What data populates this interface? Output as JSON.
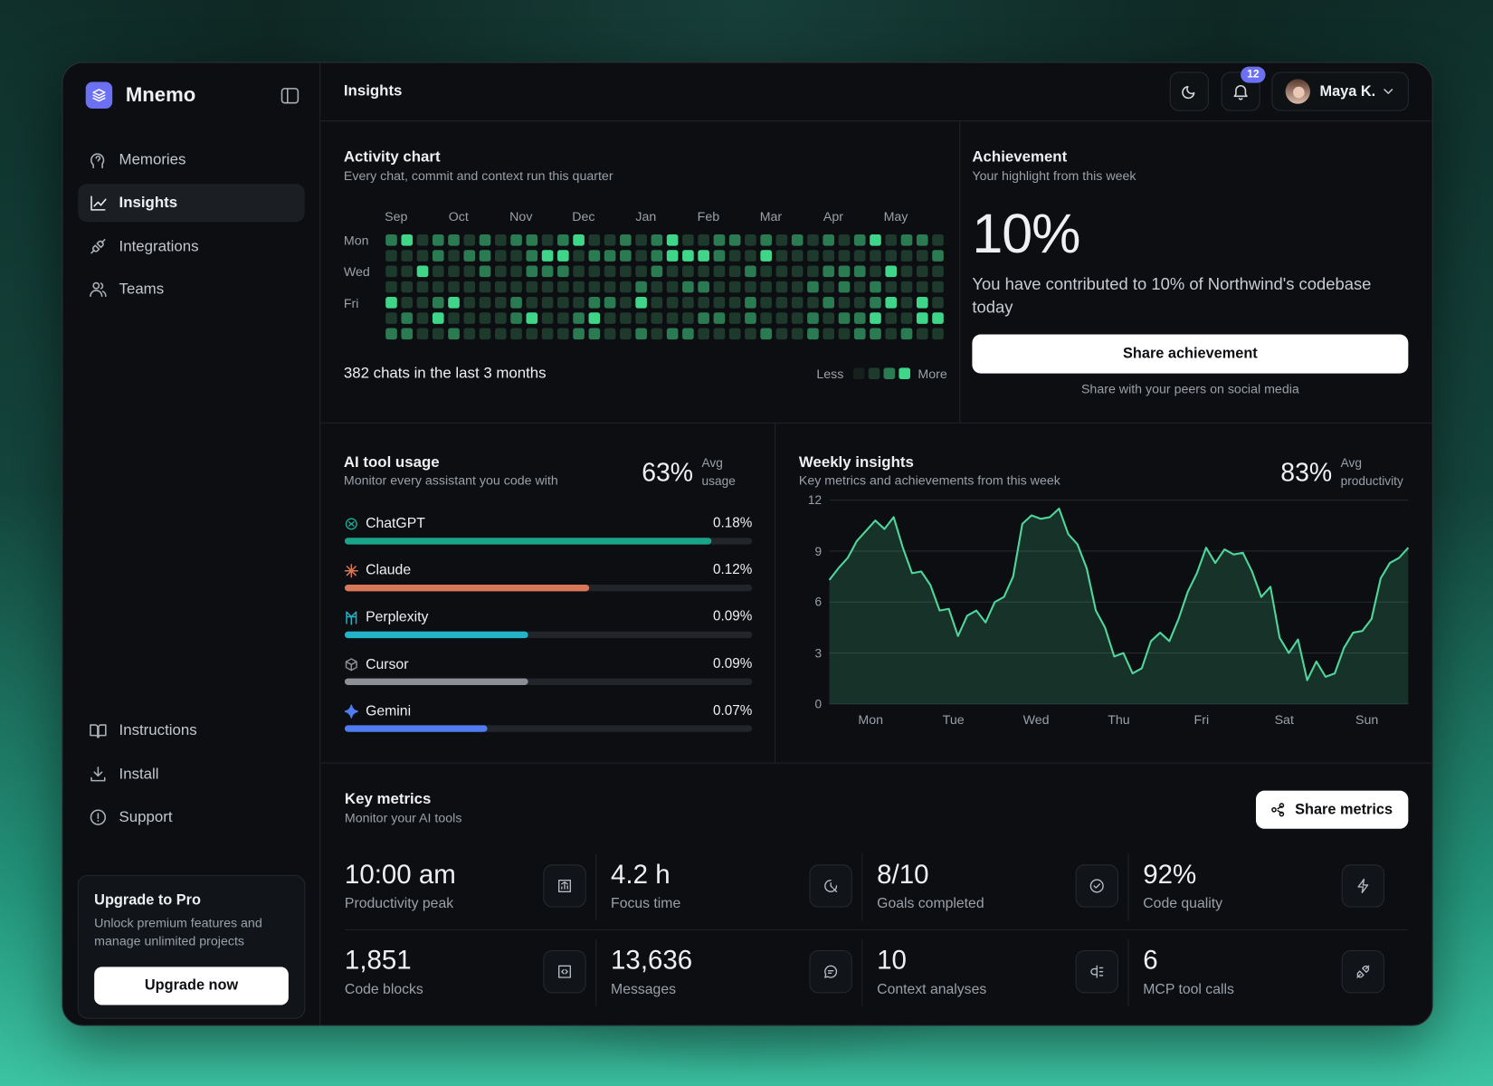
{
  "sidebar": {
    "brand": "Mnemo",
    "nav": [
      "Memories",
      "Insights",
      "Integrations",
      "Teams"
    ],
    "footer_nav": [
      "Instructions",
      "Install",
      "Support"
    ],
    "upgrade": {
      "title": "Upgrade to Pro",
      "text": "Unlock premium features and manage unlimited projects",
      "button": "Upgrade now"
    }
  },
  "header": {
    "title": "Insights",
    "notifications": 12,
    "user": "Maya K."
  },
  "activity": {
    "title": "Activity chart",
    "subtitle": "Every chat, commit and context run this quarter",
    "months": [
      "Sep",
      "Oct",
      "Nov",
      "Dec",
      "Jan",
      "Feb",
      "Mar",
      "Apr",
      "May"
    ],
    "days": [
      "Mon",
      "Wed",
      "Fri"
    ],
    "grid": [
      [
        2,
        3,
        1,
        2,
        2,
        1,
        2,
        1,
        2,
        2,
        1,
        2,
        3,
        1,
        1,
        2,
        1,
        2,
        3,
        1,
        1,
        2,
        2,
        1,
        2,
        1,
        2,
        1,
        2,
        1,
        2,
        3,
        1,
        2,
        2,
        1
      ],
      [
        1,
        1,
        1,
        2,
        1,
        2,
        2,
        1,
        1,
        2,
        3,
        3,
        1,
        2,
        2,
        2,
        1,
        2,
        3,
        3,
        3,
        2,
        1,
        1,
        3,
        1,
        1,
        1,
        1,
        1,
        1,
        1,
        1,
        1,
        1,
        2
      ],
      [
        1,
        1,
        3,
        1,
        1,
        1,
        2,
        1,
        1,
        2,
        2,
        2,
        1,
        1,
        1,
        1,
        1,
        2,
        1,
        1,
        1,
        1,
        1,
        2,
        1,
        1,
        1,
        1,
        2,
        2,
        2,
        1,
        3,
        1,
        1,
        1
      ],
      [
        1,
        1,
        1,
        1,
        1,
        1,
        1,
        1,
        1,
        1,
        1,
        1,
        1,
        1,
        1,
        1,
        2,
        1,
        1,
        2,
        2,
        1,
        1,
        1,
        1,
        1,
        1,
        2,
        1,
        2,
        1,
        2,
        1,
        1,
        1,
        1
      ],
      [
        3,
        1,
        1,
        2,
        3,
        1,
        1,
        1,
        2,
        1,
        1,
        1,
        1,
        2,
        2,
        1,
        3,
        1,
        1,
        1,
        1,
        1,
        1,
        2,
        1,
        1,
        1,
        1,
        2,
        1,
        1,
        2,
        3,
        1,
        3,
        1
      ],
      [
        1,
        2,
        1,
        3,
        1,
        1,
        1,
        1,
        2,
        3,
        1,
        1,
        2,
        3,
        1,
        1,
        1,
        1,
        1,
        1,
        2,
        2,
        1,
        2,
        1,
        1,
        1,
        2,
        1,
        2,
        2,
        3,
        1,
        1,
        3,
        3
      ],
      [
        2,
        2,
        1,
        1,
        2,
        1,
        1,
        1,
        1,
        1,
        1,
        1,
        2,
        2,
        1,
        1,
        2,
        1,
        2,
        2,
        1,
        1,
        1,
        1,
        2,
        1,
        1,
        2,
        1,
        1,
        2,
        2,
        1,
        2,
        1,
        1
      ]
    ],
    "colors": [
      "#17201d",
      "#1d3a2d",
      "#2a7a52",
      "#3fd68a"
    ],
    "summary": "382 chats in the last 3 months",
    "legend": [
      "Less",
      "More"
    ]
  },
  "achievement": {
    "title": "Achievement",
    "subtitle": "Your highlight from this week",
    "value": "10%",
    "text": "You have contributed to 10% of Northwind's codebase today",
    "button": "Share achievement",
    "caption": "Share with your peers on social media"
  },
  "ai_usage": {
    "title": "AI tool usage",
    "subtitle": "Monitor every assistant you code with",
    "avg": "63%",
    "avg_caption": [
      "Avg",
      "usage"
    ],
    "names": [
      "ChatGPT",
      "Claude",
      "Perplexity",
      "Cursor",
      "Gemini"
    ],
    "values": [
      0.18,
      0.12,
      0.09,
      0.09,
      0.07
    ],
    "value_labels": [
      "0.18%",
      "0.12%",
      "0.09%",
      "0.09%",
      "0.07%"
    ],
    "colors": [
      "#1aa58a",
      "#d9775a",
      "#22b3c9",
      "#8c9096",
      "#4f7cf0"
    ],
    "xlim": [
      0,
      0.2
    ]
  },
  "weekly": {
    "title": "Weekly insights",
    "subtitle": "Key metrics and achievements from this week",
    "avg": "83%",
    "avg_caption": [
      "Avg",
      "productivity"
    ],
    "chart": {
      "type": "area",
      "categories": [
        "Mon",
        "Tue",
        "Wed",
        "Thu",
        "Fri",
        "Sat",
        "Sun"
      ],
      "values": [
        7.3,
        8.0,
        8.6,
        9.6,
        10.2,
        10.8,
        10.3,
        11.0,
        9.2,
        7.7,
        7.8,
        7.0,
        5.5,
        5.6,
        4.0,
        5.2,
        5.5,
        4.8,
        6.0,
        6.3,
        7.5,
        10.6,
        11.1,
        10.9,
        11.0,
        11.5,
        10.0,
        9.4,
        8.0,
        5.5,
        4.5,
        2.8,
        3.0,
        1.8,
        2.1,
        3.7,
        4.2,
        3.7,
        5.0,
        6.6,
        7.7,
        9.2,
        8.3,
        9.1,
        8.8,
        8.9,
        7.8,
        6.3,
        6.9,
        3.9,
        3.0,
        3.8,
        1.4,
        2.5,
        1.6,
        1.8,
        3.3,
        4.2,
        4.3,
        5.0,
        7.4,
        8.3,
        8.6,
        9.2
      ],
      "ylim": [
        0,
        12
      ],
      "yticks": [
        0,
        3,
        6,
        9,
        12
      ],
      "grid": true,
      "color": "#4fd69c"
    }
  },
  "key_metrics": {
    "title": "Key metrics",
    "subtitle": "Monitor your AI tools",
    "button": "Share metrics",
    "items": [
      {
        "value": "10:00 am",
        "label": "Productivity peak"
      },
      {
        "value": "4.2 h",
        "label": "Focus time"
      },
      {
        "value": "8/10",
        "label": "Goals completed"
      },
      {
        "value": "92%",
        "label": "Code quality"
      },
      {
        "value": "1,851",
        "label": "Code blocks"
      },
      {
        "value": "13,636",
        "label": "Messages"
      },
      {
        "value": "10",
        "label": "Context analyses"
      },
      {
        "value": "6",
        "label": "MCP tool calls"
      }
    ]
  }
}
